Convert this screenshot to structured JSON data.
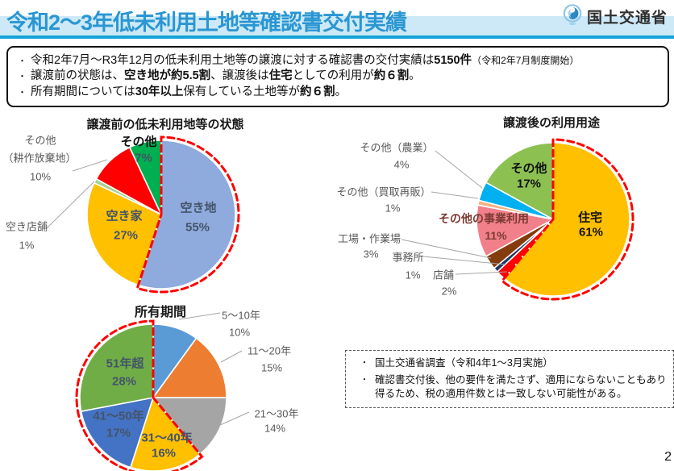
{
  "header": {
    "title": "令和2～3年低未利用土地等確認書交付実績",
    "logo_text": "国土交通省",
    "page_number": "2"
  },
  "colors": {
    "title_blue": "#2a96d2",
    "band_blue": "#cde9f7",
    "underline_blue": "#14a3d6",
    "highlight_red": "#ff0000"
  },
  "summary_bullets": [
    {
      "segments": [
        {
          "text": "令和2年7月～R3年12月の低未利用土地等の譲渡に対する確認書の交付実績は",
          "bold": false
        },
        {
          "text": "5150件",
          "bold": true
        },
        {
          "text": "（令和2年7月制度開始）",
          "bold": false,
          "small": true
        }
      ]
    },
    {
      "segments": [
        {
          "text": "譲渡前の状態は、",
          "bold": false
        },
        {
          "text": "空き地が約5.5割",
          "bold": true
        },
        {
          "text": "、譲渡後は",
          "bold": false
        },
        {
          "text": "住宅",
          "bold": true
        },
        {
          "text": "としての利用が",
          "bold": false
        },
        {
          "text": "約６割",
          "bold": true
        },
        {
          "text": "。",
          "bold": false
        }
      ]
    },
    {
      "segments": [
        {
          "text": "所有期間については",
          "bold": false
        },
        {
          "text": "30年以上",
          "bold": true
        },
        {
          "text": "保有している土地等が",
          "bold": false
        },
        {
          "text": "約６割",
          "bold": true
        },
        {
          "text": "。",
          "bold": false
        }
      ]
    }
  ],
  "chart_data": [
    {
      "type": "pie",
      "title": "譲渡前の低未利用地等の状態",
      "slices": [
        {
          "label": "空き地",
          "pct": 55,
          "pct_label": "55%",
          "color": "#8FAADC"
        },
        {
          "label": "空き家",
          "pct": 27,
          "pct_label": "27%",
          "color": "#FFC000"
        },
        {
          "label": "空き店舗",
          "pct": 1,
          "pct_label": "1%",
          "color": "#A9D18E"
        },
        {
          "label": "その他（耕作放棄地）",
          "pct": 10,
          "pct_label": "10%",
          "color": "#FF0000",
          "label_lines": [
            "その他",
            "（耕作放棄地）"
          ]
        },
        {
          "label": "その他",
          "pct": 7,
          "pct_label": "7%",
          "color": "#00B050"
        }
      ],
      "highlight": {
        "from_pct": 0,
        "to_pct": 55,
        "style": "red-dashed",
        "meaning": "空き地が約5.5割"
      }
    },
    {
      "type": "pie",
      "title": "譲渡後の利用用途",
      "slices": [
        {
          "label": "住宅",
          "pct": 61,
          "pct_label": "61%",
          "color": "#FFC000"
        },
        {
          "label": "店舗",
          "pct": 2,
          "pct_label": "2%",
          "color": "#FF0000"
        },
        {
          "label": "事務所",
          "pct": 1,
          "pct_label": "1%",
          "color": "#1F3864"
        },
        {
          "label": "工場・作業場",
          "pct": 3,
          "pct_label": "3%",
          "color": "#843C0C"
        },
        {
          "label": "その他の事業利用",
          "pct": 11,
          "pct_label": "11%",
          "color": "#F2808A"
        },
        {
          "label": "その他（買取再販）",
          "pct": 1,
          "pct_label": "1%",
          "color": "#F4B183"
        },
        {
          "label": "その他（農業）",
          "pct": 4,
          "pct_label": "4%",
          "color": "#00B0F0"
        },
        {
          "label": "その他",
          "pct": 17,
          "pct_label": "17%",
          "color": "#8CC152"
        }
      ],
      "highlight": {
        "from_pct": 0,
        "to_pct": 61,
        "style": "red-dashed",
        "meaning": "住宅としての利用が約6割"
      }
    },
    {
      "type": "pie",
      "title": "所有期間",
      "slices": [
        {
          "label": "5～10年",
          "pct": 10,
          "pct_label": "10%",
          "color": "#5B9BD5"
        },
        {
          "label": "11～20年",
          "pct": 15,
          "pct_label": "15%",
          "color": "#ED7D31"
        },
        {
          "label": "21～30年",
          "pct": 14,
          "pct_label": "14%",
          "color": "#A5A5A5"
        },
        {
          "label": "31～40年",
          "pct": 16,
          "pct_label": "16%",
          "color": "#FFC000"
        },
        {
          "label": "41～50年",
          "pct": 17,
          "pct_label": "17%",
          "color": "#4472C4"
        },
        {
          "label": "51年超",
          "pct": 28,
          "pct_label": "28%",
          "color": "#70AD47"
        }
      ],
      "highlight": {
        "from_pct": 39,
        "to_pct": 100,
        "style": "red-dashed",
        "meaning": "30年以上保有が約6割"
      }
    }
  ],
  "notes": {
    "items": [
      "国土交通省調査（令和4年1～3月実施）",
      "確認書交付後、他の要件を満たさず、適用にならないこともあり得るため、税の適用件数とは一致しない可能性がある。"
    ]
  }
}
